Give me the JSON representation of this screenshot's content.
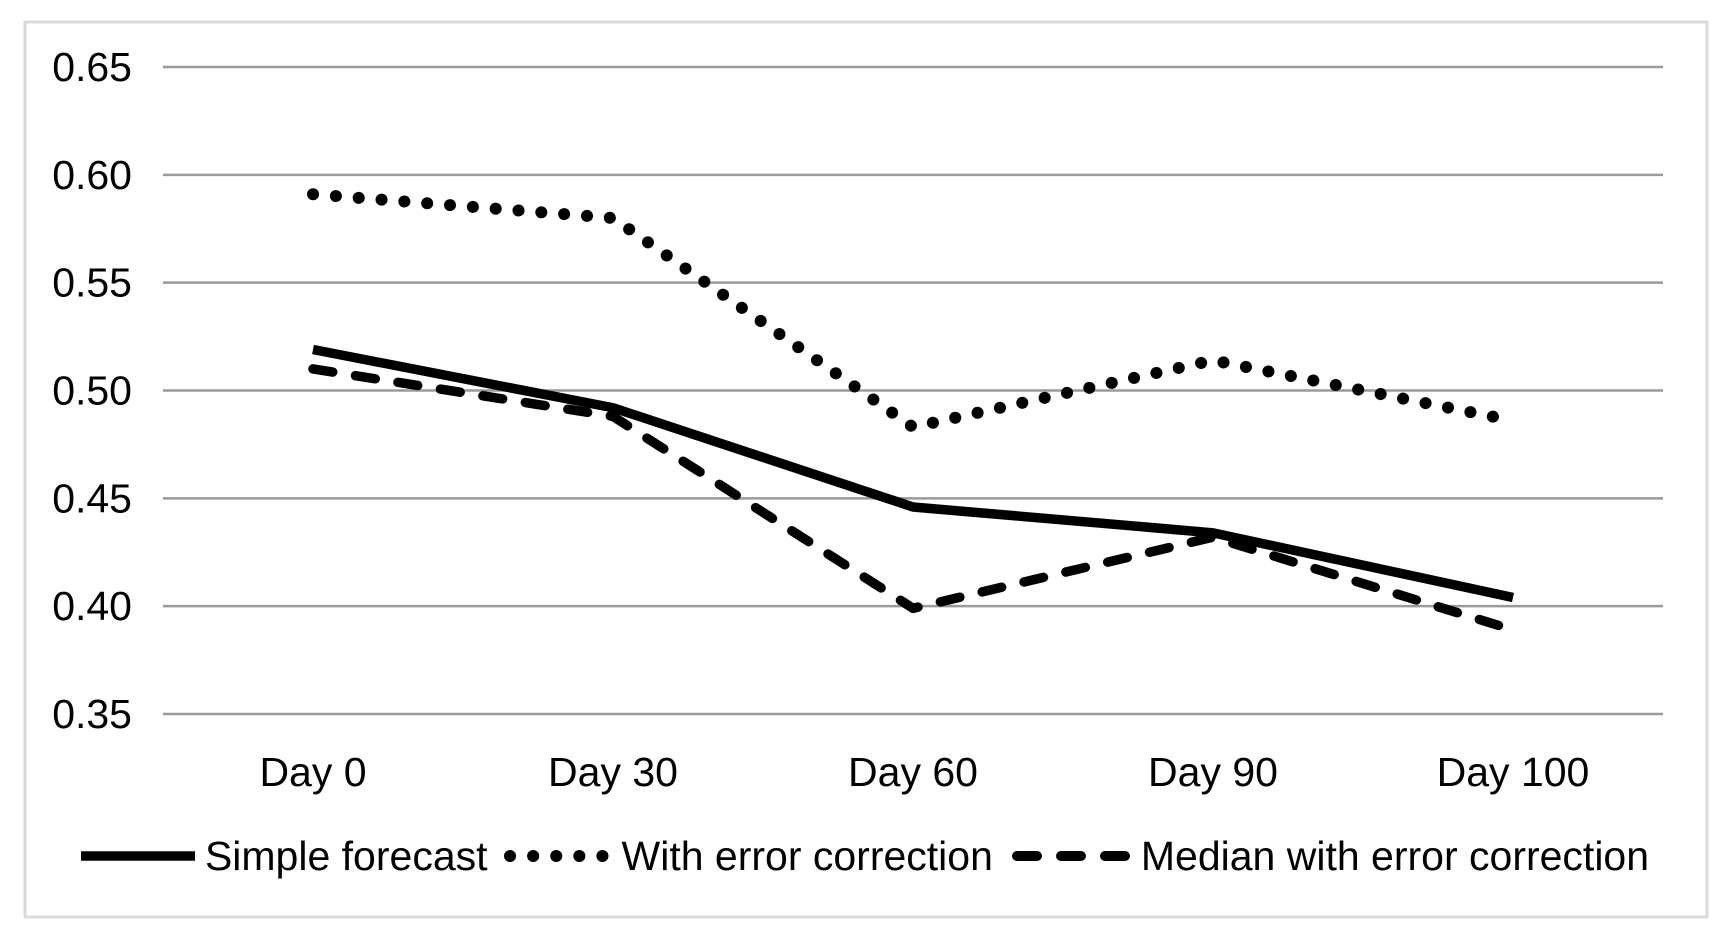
{
  "chart_data": {
    "type": "line",
    "title": "",
    "xlabel": "",
    "ylabel": "",
    "categories": [
      "Day 0",
      "Day 30",
      "Day 60",
      "Day 90",
      "Day 100"
    ],
    "series": [
      {
        "name": "Simple forecast",
        "line_style": "solid",
        "color": "#000000",
        "values": [
          0.519,
          0.492,
          0.446,
          0.434,
          0.404
        ]
      },
      {
        "name": "With error correction",
        "line_style": "dotted",
        "color": "#000000",
        "values": [
          0.591,
          0.58,
          0.483,
          0.514,
          0.486
        ]
      },
      {
        "name": "Median with error correction",
        "line_style": "dashed",
        "color": "#000000",
        "values": [
          0.51,
          0.488,
          0.399,
          0.432,
          0.389
        ]
      }
    ],
    "ylim": [
      0.35,
      0.65
    ],
    "ytick_step": 0.05,
    "ytick_labels": [
      "0.65",
      "0.60",
      "0.55",
      "0.50",
      "0.45",
      "0.40",
      "0.35"
    ],
    "grid": true,
    "grid_color": "#9a9a9a",
    "axis_text_color": "#000000",
    "frame_color": "#d9d9d9",
    "legend_position": "bottom"
  }
}
